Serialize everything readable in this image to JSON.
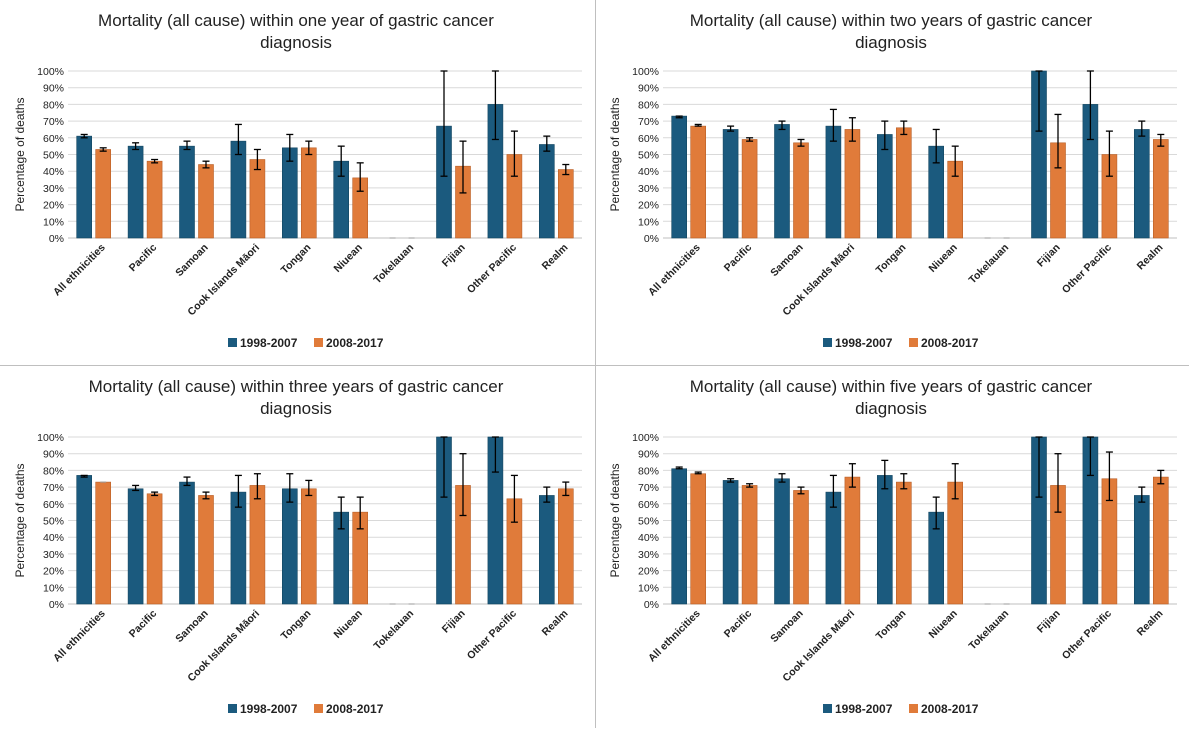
{
  "chart_data": [
    {
      "type": "bar",
      "title_lines": [
        "Mortality (all cause) within one year of gastric cancer",
        "diagnosis"
      ],
      "ylabel": "Percentage of deaths",
      "ylim": [
        0,
        100
      ],
      "yticks": [
        "0%",
        "10%",
        "20%",
        "30%",
        "40%",
        "50%",
        "60%",
        "70%",
        "80%",
        "90%",
        "100%"
      ],
      "categories": [
        "All ethnicities",
        "Pacific",
        "Samoan",
        "Cook Islands Māori",
        "Tongan",
        "Niuean",
        "Tokelauan",
        "Fijian",
        "Other Pacific",
        "Realm"
      ],
      "legend_position": "bottom",
      "series": [
        {
          "name": "1998-2007",
          "color": "#1b5a7e",
          "values": [
            61,
            55,
            55,
            58,
            54,
            46,
            0,
            67,
            80,
            56
          ],
          "err_low": [
            60,
            53,
            53,
            50,
            46,
            37,
            0,
            37,
            59,
            52
          ],
          "err_high": [
            62,
            57,
            58,
            68,
            62,
            55,
            0,
            100,
            100,
            61
          ]
        },
        {
          "name": "2008-2017",
          "color": "#e07b3a",
          "values": [
            53,
            46,
            44,
            47,
            54,
            36,
            0,
            43,
            50,
            41
          ],
          "err_low": [
            52,
            45,
            42,
            41,
            50,
            28,
            0,
            27,
            37,
            38
          ],
          "err_high": [
            54,
            47,
            46,
            53,
            58,
            45,
            0,
            58,
            64,
            44
          ]
        }
      ]
    },
    {
      "type": "bar",
      "title_lines": [
        "Mortality (all cause) within two years of gastric cancer",
        "diagnosis"
      ],
      "ylabel": "Percentage of deaths",
      "ylim": [
        0,
        100
      ],
      "yticks": [
        "0%",
        "10%",
        "20%",
        "30%",
        "40%",
        "50%",
        "60%",
        "70%",
        "80%",
        "90%",
        "100%"
      ],
      "categories": [
        "All ethnicities",
        "Pacific",
        "Samoan",
        "Cook Islands Māori",
        "Tongan",
        "Niuean",
        "Tokelauan",
        "Fijian",
        "Other Pacific",
        "Realm"
      ],
      "legend_position": "bottom",
      "series": [
        {
          "name": "1998-2007",
          "color": "#1b5a7e",
          "values": [
            73,
            65,
            68,
            67,
            62,
            55,
            0,
            100,
            80,
            65
          ],
          "err_low": [
            72,
            64,
            65,
            58,
            53,
            45,
            0,
            64,
            59,
            61
          ],
          "err_high": [
            73,
            67,
            70,
            77,
            70,
            65,
            0,
            100,
            100,
            70
          ]
        },
        {
          "name": "2008-2017",
          "color": "#e07b3a",
          "values": [
            67,
            59,
            57,
            65,
            66,
            46,
            0,
            57,
            50,
            59
          ],
          "err_low": [
            67,
            58,
            55,
            58,
            62,
            37,
            0,
            42,
            37,
            55
          ],
          "err_high": [
            68,
            60,
            59,
            72,
            70,
            55,
            0,
            74,
            64,
            62
          ]
        }
      ]
    },
    {
      "type": "bar",
      "title_lines": [
        "Mortality (all cause) within three years of gastric cancer",
        "diagnosis"
      ],
      "ylabel": "Percentage of deaths",
      "ylim": [
        0,
        100
      ],
      "yticks": [
        "0%",
        "10%",
        "20%",
        "30%",
        "40%",
        "50%",
        "60%",
        "70%",
        "80%",
        "90%",
        "100%"
      ],
      "categories": [
        "All ethnicities",
        "Pacific",
        "Samoan",
        "Cook Islands Māori",
        "Tongan",
        "Niuean",
        "Tokelauan",
        "Fijian",
        "Other Pacific",
        "Realm"
      ],
      "legend_position": "bottom",
      "series": [
        {
          "name": "1998-2007",
          "color": "#1b5a7e",
          "values": [
            77,
            69,
            73,
            67,
            69,
            55,
            0,
            100,
            100,
            65
          ],
          "err_low": [
            76,
            68,
            71,
            58,
            61,
            45,
            0,
            64,
            79,
            61
          ],
          "err_high": [
            77,
            71,
            76,
            77,
            78,
            64,
            0,
            100,
            100,
            70
          ]
        },
        {
          "name": "2008-2017",
          "color": "#e07b3a",
          "values": [
            73,
            66,
            65,
            71,
            69,
            55,
            0,
            71,
            63,
            69
          ],
          "err_low": [
            73,
            65,
            63,
            63,
            65,
            45,
            0,
            53,
            49,
            65
          ],
          "err_high": [
            73,
            67,
            67,
            78,
            74,
            64,
            0,
            90,
            77,
            73
          ]
        }
      ]
    },
    {
      "type": "bar",
      "title_lines": [
        "Mortality (all cause) within five years of gastric cancer",
        "diagnosis"
      ],
      "ylabel": "Percentage of deaths",
      "ylim": [
        0,
        100
      ],
      "yticks": [
        "0%",
        "10%",
        "20%",
        "30%",
        "40%",
        "50%",
        "60%",
        "70%",
        "80%",
        "90%",
        "100%"
      ],
      "categories": [
        "All ethnicities",
        "Pacific",
        "Samoan",
        "Cook Islands Māori",
        "Tongan",
        "Niuean",
        "Tokelauan",
        "Fijian",
        "Other Pacific",
        "Realm"
      ],
      "legend_position": "bottom",
      "series": [
        {
          "name": "1998-2007",
          "color": "#1b5a7e",
          "values": [
            81,
            74,
            75,
            67,
            77,
            55,
            0,
            100,
            100,
            65
          ],
          "err_low": [
            81,
            73,
            73,
            58,
            69,
            45,
            0,
            64,
            77,
            61
          ],
          "err_high": [
            82,
            75,
            78,
            77,
            86,
            64,
            0,
            100,
            100,
            70
          ]
        },
        {
          "name": "2008-2017",
          "color": "#e07b3a",
          "values": [
            78,
            71,
            68,
            76,
            73,
            73,
            0,
            71,
            75,
            76
          ],
          "err_low": [
            78,
            70,
            66,
            70,
            69,
            63,
            0,
            55,
            62,
            72
          ],
          "err_high": [
            79,
            72,
            70,
            84,
            78,
            84,
            0,
            90,
            91,
            80
          ]
        }
      ]
    }
  ],
  "colors": {
    "series_1": "#1b5a7e",
    "series_2": "#e07b3a",
    "grid": "#d9d9d9",
    "axis": "#bfbfbf"
  }
}
